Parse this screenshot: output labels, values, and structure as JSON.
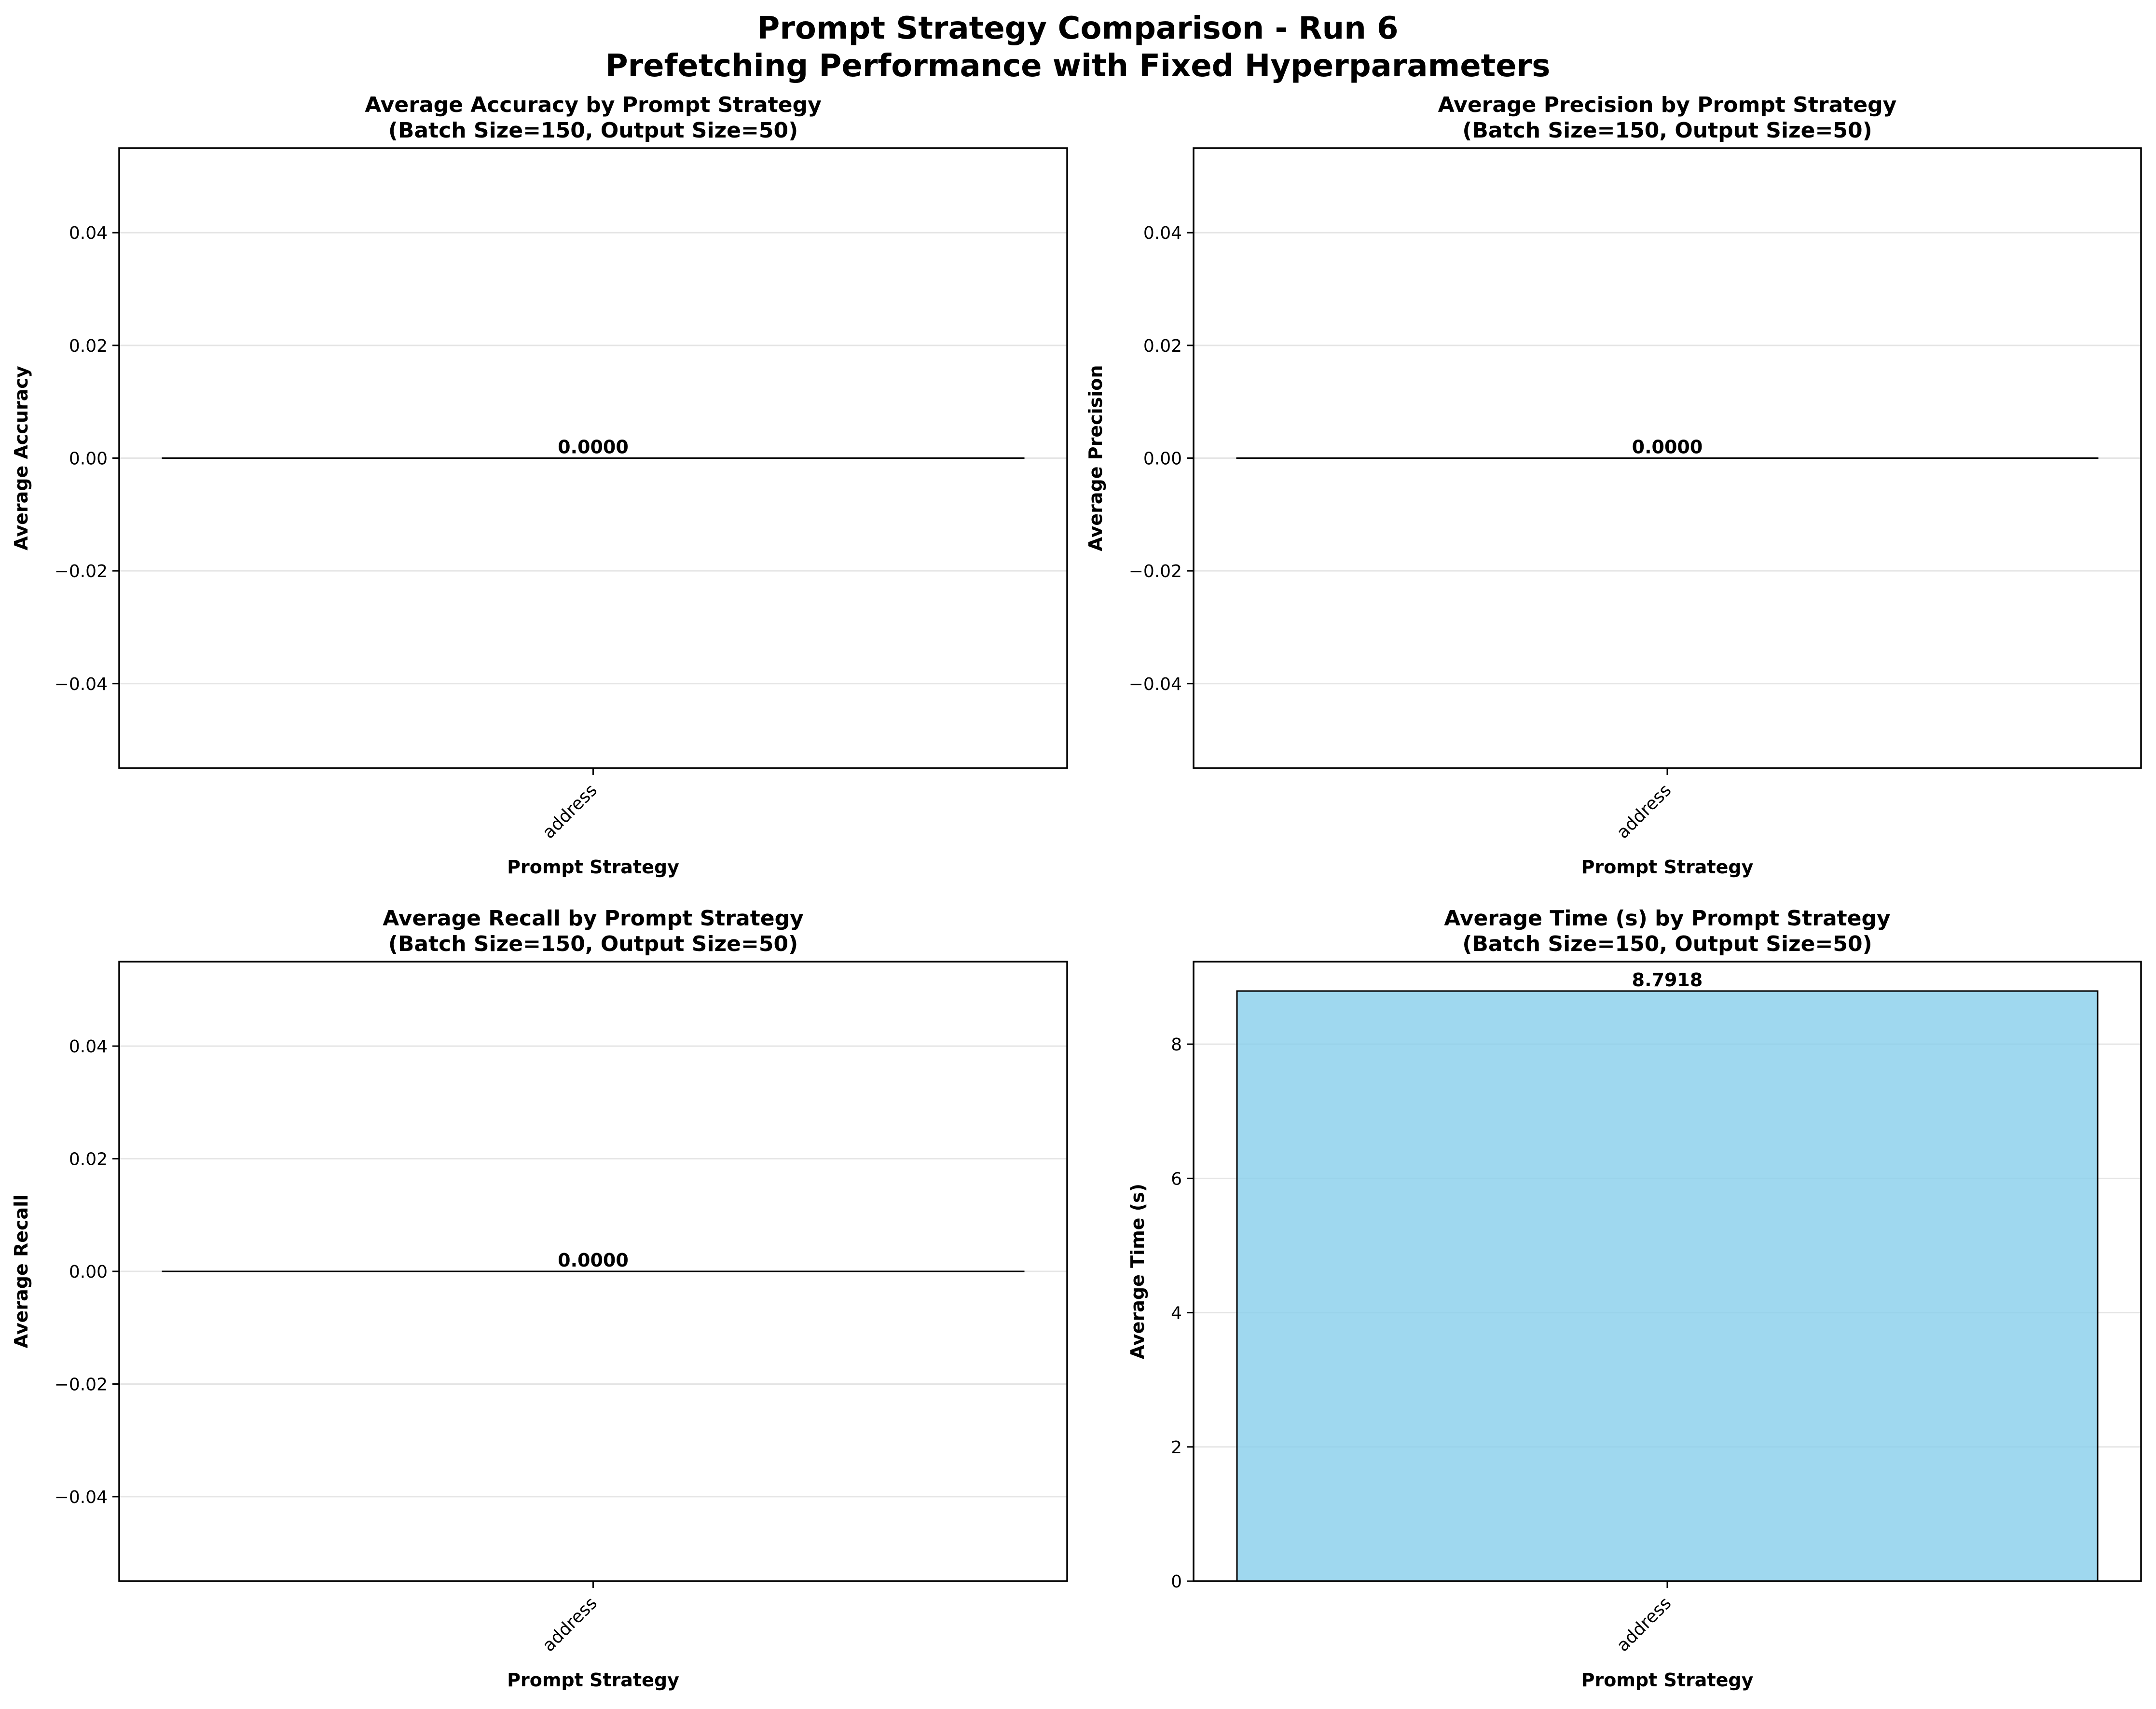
{
  "title_line1": "Prompt Strategy Comparison - Run 6",
  "title_line2": "Prefetching Performance with Fixed Hyperparameters",
  "bar_color": "#87CEEB",
  "bar_edge_color": "#000000",
  "chart_data": [
    {
      "type": "bar",
      "title_line1": "Average Accuracy by Prompt Strategy",
      "title_line2": "(Batch Size=150, Output Size=50)",
      "xlabel": "Prompt Strategy",
      "ylabel": "Average Accuracy",
      "categories": [
        "address"
      ],
      "values": [
        0.0
      ],
      "value_labels": [
        "0.0000"
      ],
      "ylim": [
        -0.055,
        0.055
      ],
      "yticks": [
        -0.04,
        -0.02,
        0.0,
        0.02,
        0.04
      ],
      "ytick_labels": [
        "−0.04",
        "−0.02",
        "0.00",
        "0.02",
        "0.04"
      ],
      "grid": "y"
    },
    {
      "type": "bar",
      "title_line1": "Average Precision by Prompt Strategy",
      "title_line2": "(Batch Size=150, Output Size=50)",
      "xlabel": "Prompt Strategy",
      "ylabel": "Average Precision",
      "categories": [
        "address"
      ],
      "values": [
        0.0
      ],
      "value_labels": [
        "0.0000"
      ],
      "ylim": [
        -0.055,
        0.055
      ],
      "yticks": [
        -0.04,
        -0.02,
        0.0,
        0.02,
        0.04
      ],
      "ytick_labels": [
        "−0.04",
        "−0.02",
        "0.00",
        "0.02",
        "0.04"
      ],
      "grid": "y"
    },
    {
      "type": "bar",
      "title_line1": "Average Recall by Prompt Strategy",
      "title_line2": "(Batch Size=150, Output Size=50)",
      "xlabel": "Prompt Strategy",
      "ylabel": "Average Recall",
      "categories": [
        "address"
      ],
      "values": [
        0.0
      ],
      "value_labels": [
        "0.0000"
      ],
      "ylim": [
        -0.055,
        0.055
      ],
      "yticks": [
        -0.04,
        -0.02,
        0.0,
        0.02,
        0.04
      ],
      "ytick_labels": [
        "−0.04",
        "−0.02",
        "0.00",
        "0.02",
        "0.04"
      ],
      "grid": "y"
    },
    {
      "type": "bar",
      "title_line1": "Average Time (s) by Prompt Strategy",
      "title_line2": "(Batch Size=150, Output Size=50)",
      "xlabel": "Prompt Strategy",
      "ylabel": "Average Time (s)",
      "categories": [
        "address"
      ],
      "values": [
        8.7918
      ],
      "value_labels": [
        "8.7918"
      ],
      "ylim": [
        0,
        9.23
      ],
      "yticks": [
        0,
        2,
        4,
        6,
        8
      ],
      "ytick_labels": [
        "0",
        "2",
        "4",
        "6",
        "8"
      ],
      "grid": "y"
    }
  ]
}
